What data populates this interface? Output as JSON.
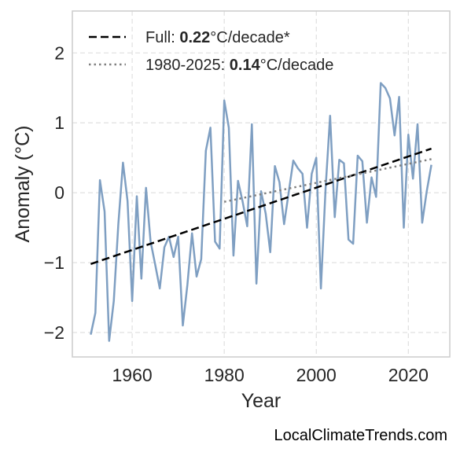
{
  "chart_data": {
    "type": "line",
    "xlabel": "Year",
    "ylabel": "Anomaly (°C)",
    "xlim": [
      1947,
      2029
    ],
    "ylim": [
      -2.35,
      2.6
    ],
    "xticks": [
      1960,
      1980,
      2000,
      2020
    ],
    "yticks": [
      -2,
      -1,
      0,
      1,
      2
    ],
    "ytick_labels": [
      "−2",
      "−1",
      "0",
      "1",
      "2"
    ],
    "grid": true,
    "legend_position": "top-left",
    "series": [
      {
        "color": "#7f9fc2",
        "x": [
          1951,
          1952,
          1953,
          1954,
          1955,
          1956,
          1957,
          1958,
          1959,
          1960,
          1961,
          1962,
          1963,
          1964,
          1965,
          1966,
          1967,
          1968,
          1969,
          1970,
          1971,
          1972,
          1973,
          1974,
          1975,
          1976,
          1977,
          1978,
          1979,
          1980,
          1981,
          1982,
          1983,
          1984,
          1985,
          1986,
          1987,
          1988,
          1989,
          1990,
          1991,
          1992,
          1993,
          1994,
          1995,
          1996,
          1997,
          1998,
          1999,
          2000,
          2001,
          2002,
          2003,
          2004,
          2005,
          2006,
          2007,
          2008,
          2009,
          2010,
          2011,
          2012,
          2013,
          2014,
          2015,
          2016,
          2017,
          2018,
          2019,
          2020,
          2021,
          2022,
          2023,
          2024,
          2025
        ],
        "y": [
          -2.03,
          -1.72,
          0.18,
          -0.27,
          -2.12,
          -1.55,
          -0.45,
          0.43,
          -0.12,
          -1.55,
          -0.05,
          -1.23,
          0.07,
          -0.7,
          -1.03,
          -1.37,
          -0.78,
          -0.63,
          -0.92,
          -0.63,
          -1.9,
          -1.32,
          -0.58,
          -1.2,
          -0.95,
          0.6,
          0.93,
          -0.7,
          -0.8,
          1.32,
          0.93,
          -0.9,
          0.17,
          -0.13,
          -0.48,
          0.98,
          -1.3,
          0.02,
          -0.3,
          -0.85,
          0.38,
          0.15,
          -0.45,
          0.0,
          0.46,
          0.35,
          0.27,
          -0.5,
          0.27,
          0.5,
          -1.37,
          0.05,
          1.1,
          -0.35,
          0.47,
          0.42,
          -0.67,
          -0.73,
          0.53,
          0.45,
          -0.43,
          0.22,
          -0.06,
          1.57,
          1.5,
          1.35,
          0.82,
          1.37,
          -0.5,
          0.83,
          0.2,
          0.98,
          -0.43,
          0.02,
          0.4
        ]
      },
      {
        "style": "dashed",
        "color": "#000000",
        "x": [
          1951,
          2025
        ],
        "y": [
          -1.02,
          0.63
        ]
      },
      {
        "style": "dotted",
        "color": "#808080",
        "x": [
          1980,
          2025
        ],
        "y": [
          -0.13,
          0.48
        ]
      }
    ]
  },
  "legend": {
    "full": {
      "prefix": "Full: ",
      "rate": "0.22",
      "suffix": "°C/decade*"
    },
    "recent": {
      "prefix": "1980-2025: ",
      "rate": "0.14",
      "suffix": "°C/decade"
    }
  },
  "source": "LocalClimateTrends.com"
}
